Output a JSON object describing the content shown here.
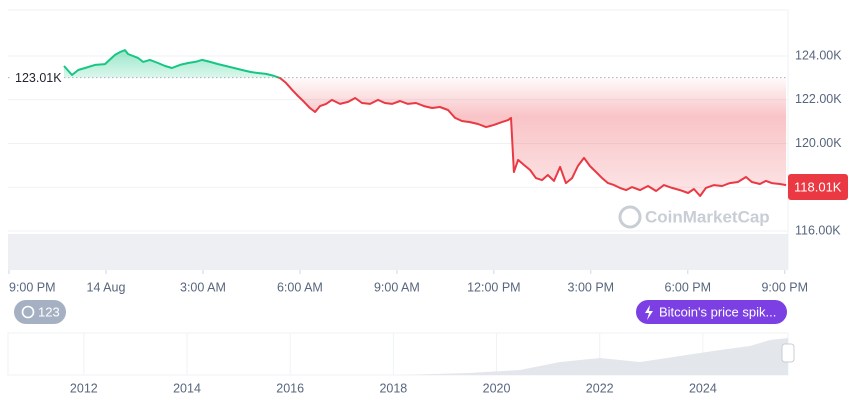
{
  "chart_data": {
    "type": "area",
    "x": [
      1.7,
      1.95,
      2.14,
      2.35,
      2.66,
      2.97,
      3.28,
      3.44,
      3.59,
      3.68,
      3.99,
      4.15,
      4.36,
      4.61,
      4.83,
      5.04,
      5.29,
      5.54,
      5.76,
      5.97,
      6.22,
      6.47,
      6.71,
      6.96,
      7.21,
      7.46,
      7.7,
      7.95,
      8.2,
      8.39,
      8.57,
      8.76,
      8.94,
      9.13,
      9.31,
      9.47,
      9.62,
      9.81,
      9.99,
      10.24,
      10.49,
      10.71,
      10.92,
      11.17,
      11.42,
      11.63,
      11.85,
      12.1,
      12.34,
      12.59,
      12.84,
      13.09,
      13.33,
      13.58,
      13.8,
      14.01,
      14.26,
      14.51,
      14.76,
      15.0,
      15.25,
      15.44,
      15.53,
      15.62,
      15.75,
      15.93,
      16.12,
      16.3,
      16.49,
      16.67,
      16.86,
      17.05,
      17.23,
      17.42,
      17.6,
      17.79,
      17.97,
      18.16,
      18.35,
      18.53,
      18.72,
      18.9,
      19.09,
      19.27,
      19.52,
      19.77,
      20.02,
      20.26,
      20.51,
      20.76,
      21.01,
      21.19,
      21.38,
      21.56,
      21.81,
      22.06,
      22.3,
      22.55,
      22.8,
      22.98,
      23.23,
      23.42,
      23.6,
      23.85,
      24.04
    ],
    "values": [
      123540,
      123130,
      123360,
      123450,
      123590,
      123630,
      124050,
      124180,
      124270,
      124090,
      123910,
      123730,
      123820,
      123680,
      123540,
      123450,
      123590,
      123680,
      123730,
      123820,
      123730,
      123630,
      123540,
      123450,
      123360,
      123270,
      123220,
      123180,
      123090,
      122990,
      122770,
      122450,
      122170,
      121900,
      121620,
      121440,
      121710,
      121810,
      121990,
      121810,
      121900,
      122080,
      121850,
      121810,
      121990,
      121850,
      121810,
      121940,
      121810,
      121850,
      121710,
      121620,
      121670,
      121530,
      121170,
      121030,
      120980,
      120890,
      120750,
      120850,
      120980,
      121070,
      121170,
      118700,
      119250,
      119020,
      118790,
      118420,
      118330,
      118560,
      118290,
      118930,
      118190,
      118420,
      118970,
      119340,
      118970,
      118700,
      118420,
      118190,
      118100,
      117970,
      117870,
      118010,
      117870,
      118060,
      117830,
      118100,
      117970,
      117870,
      117740,
      117920,
      117600,
      117970,
      118100,
      118060,
      118190,
      118240,
      118470,
      118240,
      118150,
      118290,
      118190,
      118150,
      118100
    ],
    "color_up": "#16c784",
    "color_down": "#ea3943",
    "baseline": {
      "value": 123010,
      "label": "123.01K"
    },
    "last_price": {
      "value": 118010,
      "label": "118.01K"
    },
    "xlim": [
      0,
      24.1
    ],
    "xticks": [
      {
        "value": 0,
        "label": "9:00 PM"
      },
      {
        "value": 3,
        "label": "14 Aug"
      },
      {
        "value": 6,
        "label": "3:00 AM"
      },
      {
        "value": 9,
        "label": "6:00 AM"
      },
      {
        "value": 12,
        "label": "9:00 AM"
      },
      {
        "value": 15,
        "label": "12:00 PM"
      },
      {
        "value": 18,
        "label": "3:00 PM"
      },
      {
        "value": 21,
        "label": "6:00 PM"
      },
      {
        "value": 24,
        "label": "9:00 PM"
      }
    ],
    "ylim": [
      114220,
      126100
    ],
    "yticks": [
      {
        "value": 116000,
        "label": "116.00K"
      },
      {
        "value": 118000,
        "label": "118.00K"
      },
      {
        "value": 120000,
        "label": "120.00K"
      },
      {
        "value": 122000,
        "label": "122.00K"
      },
      {
        "value": 124000,
        "label": "124.00K"
      }
    ],
    "grid": true,
    "navigator": {
      "xlim": [
        2010.53,
        2025.65
      ],
      "xticks": [
        2012,
        2014,
        2016,
        2018,
        2020,
        2022,
        2024
      ]
    }
  },
  "ui": {
    "history_badge": "123",
    "event_badge": "Bitcoin's price spik...",
    "watermark": "CoinMarketCap"
  }
}
